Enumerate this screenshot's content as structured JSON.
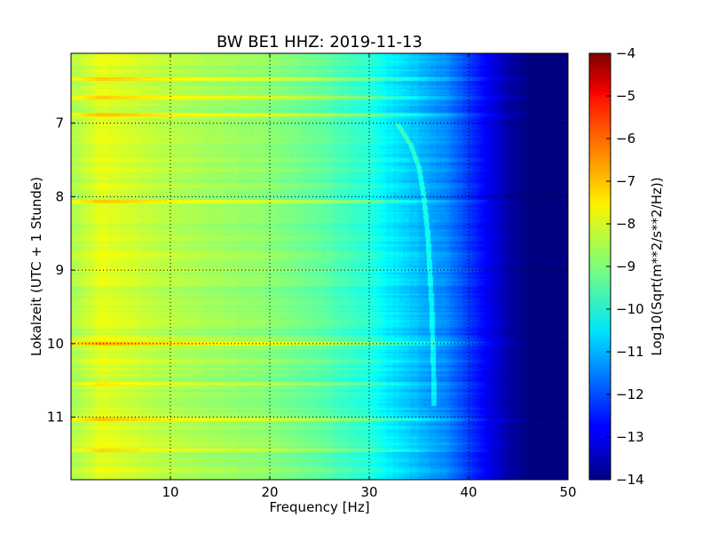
{
  "chart_data": [
    {
      "type": "heatmap",
      "title": "BW BE1 HHZ: 2019-11-13",
      "xlabel": "Frequency [Hz]",
      "ylabel": "Lokalzeit (UTC + 1 Stunde)",
      "xlim": [
        0,
        50
      ],
      "ylim": [
        6.05,
        11.85
      ],
      "y_inverted": true,
      "grid": true,
      "x_ticks": [
        10,
        20,
        30,
        40,
        50
      ],
      "x_tick_labels": [
        "10",
        "20",
        "30",
        "40",
        "50"
      ],
      "y_ticks": [
        7,
        8,
        9,
        10,
        11
      ],
      "y_tick_labels": [
        "7",
        "8",
        "9",
        "10",
        "11"
      ],
      "colormap": "jet",
      "z_range": [
        -14,
        -4
      ],
      "approx_spectrum_profile": {
        "frequency": [
          0,
          3,
          10,
          20,
          25,
          30,
          32,
          35,
          38,
          40,
          42,
          44,
          46,
          48,
          50
        ],
        "log_amplitude": [
          -8.6,
          -8.0,
          -8.5,
          -8.9,
          -9.3,
          -9.9,
          -10.4,
          -10.9,
          -11.5,
          -12.2,
          -12.9,
          -13.6,
          -14.0,
          -14.0,
          -14.0
        ]
      },
      "approx_resonance_line": {
        "time": [
          7.0,
          7.3,
          7.6,
          8.0,
          8.5,
          9.0,
          9.5,
          10.0,
          10.5,
          10.85
        ],
        "frequency": [
          32.8,
          34.2,
          35.0,
          35.5,
          35.9,
          36.1,
          36.3,
          36.4,
          36.5,
          36.5
        ]
      },
      "approx_broadband_bands": {
        "time": [
          6.4,
          6.65,
          6.88,
          8.07,
          10.0,
          10.55,
          11.03,
          11.45
        ],
        "max_frequency": [
          46,
          46,
          46,
          42,
          46,
          42,
          46,
          42
        ],
        "boost": [
          0.7,
          0.8,
          0.9,
          0.8,
          0.9,
          0.5,
          0.9,
          0.7
        ]
      }
    },
    {
      "type": "colorbar",
      "label": "Log10(Sqrt(m**2/s**2/Hz))",
      "range": [
        -14,
        -4
      ],
      "ticks": [
        -4,
        -5,
        -6,
        -7,
        -8,
        -9,
        -10,
        -11,
        -12,
        -13,
        -14
      ],
      "tick_labels": [
        "−4",
        "−5",
        "−6",
        "−7",
        "−8",
        "−9",
        "−10",
        "−11",
        "−12",
        "−13",
        "−14"
      ],
      "colormap": "jet"
    }
  ]
}
